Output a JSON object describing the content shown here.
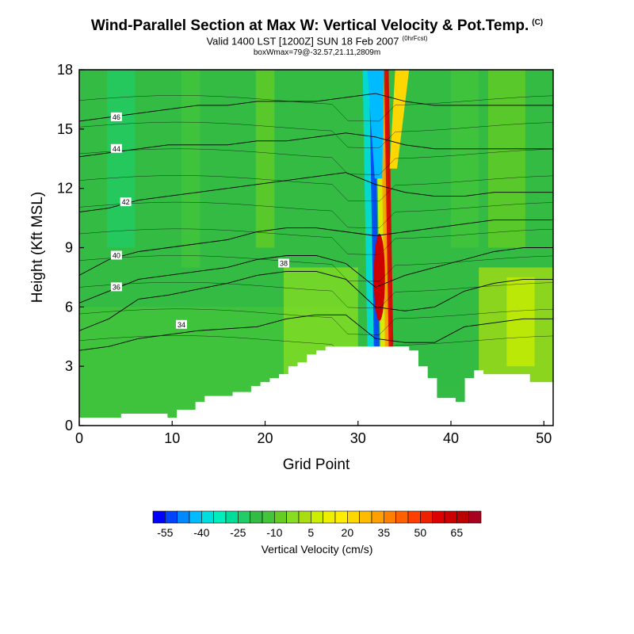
{
  "header": {
    "title": "Wind-Parallel Section at Max W: Vertical Velocity & Pot.Temp.",
    "copyright": "(C)",
    "valid": "Valid 1400 LST [1200Z] SUN 18 Feb 2007",
    "fcst_note": "(0hrFcst)",
    "box_info": "boxWmax=79@-32.57,21.11,2809m"
  },
  "chart_data": {
    "type": "heatmap",
    "xlabel": "Grid Point",
    "ylabel": "Height (Kft MSL)",
    "xlim": [
      0,
      51
    ],
    "ylim": [
      0,
      18
    ],
    "x_ticks": [
      0,
      10,
      20,
      30,
      40,
      50
    ],
    "y_ticks": [
      0,
      3,
      6,
      9,
      12,
      15,
      18
    ],
    "grid": false,
    "colorbar": {
      "label": "Vertical Velocity (cm/s)",
      "tick_labels": [
        "-55",
        "-40",
        "-25",
        "-10",
        "5",
        "20",
        "35",
        "50",
        "65"
      ],
      "tick_values": [
        -55,
        -40,
        -25,
        -10,
        5,
        20,
        35,
        50,
        65
      ],
      "min": -60,
      "max": 75,
      "step": 5,
      "colors": [
        "#0000ff",
        "#0044ff",
        "#0088ff",
        "#00bbff",
        "#00dddd",
        "#00eebb",
        "#00dd99",
        "#22cc66",
        "#33bb44",
        "#44c43a",
        "#66cc22",
        "#88dd22",
        "#aadd11",
        "#ccee00",
        "#eeee00",
        "#ffee00",
        "#ffd700",
        "#ffbb00",
        "#ffa000",
        "#ff8000",
        "#ff6000",
        "#ff4000",
        "#ee2000",
        "#dd0000",
        "#cc0000",
        "#bb0000",
        "#aa0020"
      ]
    },
    "terrain_height_kft": [
      0.4,
      0.4,
      0.4,
      0.4,
      0.4,
      0.6,
      0.6,
      0.6,
      0.6,
      0.6,
      0.4,
      0.8,
      0.8,
      1.2,
      1.5,
      1.5,
      1.5,
      1.7,
      1.7,
      2.0,
      2.2,
      2.4,
      2.6,
      3.0,
      3.2,
      3.6,
      3.8,
      4.0,
      4.0,
      4.0,
      4.0,
      4.0,
      4.0,
      4.0,
      4.0,
      4.0,
      3.8,
      3.0,
      2.4,
      1.4,
      1.4,
      1.2,
      2.4,
      2.8,
      2.6,
      2.6,
      2.6,
      2.6,
      2.6,
      2.2,
      2.2,
      2.2
    ],
    "wave": {
      "center_x": 32,
      "updraft_max_cms": 79,
      "downdraft_min_cms": -55
    },
    "theta_contours_K": [
      {
        "value": 34,
        "label_at": [
          11,
          5.1
        ],
        "heights_kft": [
          3.8,
          4.0,
          4.4,
          4.6,
          4.8,
          4.9,
          5.0,
          5.4,
          5.6,
          5.6,
          4.4,
          4.2,
          4.2,
          5.0,
          5.2,
          5.4,
          5.4
        ]
      },
      {
        "value": 36,
        "label_at": [
          4,
          7.0
        ],
        "heights_kft": [
          4.8,
          5.4,
          6.4,
          6.6,
          6.9,
          7.2,
          7.6,
          7.8,
          7.8,
          7.4,
          6.0,
          5.8,
          6.0,
          6.8,
          7.2,
          7.4,
          7.4
        ]
      },
      {
        "value": 38,
        "label_at": [
          22,
          8.2
        ],
        "heights_kft": [
          6.2,
          6.8,
          7.4,
          7.6,
          7.8,
          8.0,
          8.4,
          8.6,
          8.6,
          8.2,
          7.0,
          7.6,
          8.0,
          8.4,
          8.8,
          9.0,
          9.0
        ]
      },
      {
        "value": 40,
        "label_at": [
          4,
          8.6
        ],
        "heights_kft": [
          7.6,
          8.4,
          8.8,
          9.0,
          9.2,
          9.4,
          9.8,
          10.0,
          10.0,
          9.8,
          9.6,
          9.8,
          10.0,
          10.2,
          10.4,
          10.4,
          10.4
        ]
      },
      {
        "value": 42,
        "label_at": [
          5,
          11.3
        ],
        "heights_kft": [
          10.8,
          11.0,
          11.4,
          11.6,
          11.8,
          12.0,
          12.2,
          12.4,
          12.6,
          12.8,
          12.2,
          11.8,
          11.6,
          11.6,
          11.8,
          11.8,
          11.8
        ]
      },
      {
        "value": 44,
        "label_at": [
          4,
          14.0
        ],
        "heights_kft": [
          13.6,
          13.8,
          14.0,
          14.2,
          14.2,
          14.2,
          14.4,
          14.4,
          14.6,
          14.8,
          14.6,
          14.2,
          14.0,
          14.0,
          14.0,
          14.0,
          14.0
        ]
      },
      {
        "value": 46,
        "label_at": [
          4,
          15.6
        ],
        "heights_kft": [
          15.4,
          15.6,
          15.8,
          16.0,
          16.2,
          16.2,
          16.4,
          16.4,
          16.4,
          16.6,
          16.8,
          16.4,
          16.2,
          16.2,
          16.2,
          16.2,
          16.2
        ]
      }
    ]
  }
}
